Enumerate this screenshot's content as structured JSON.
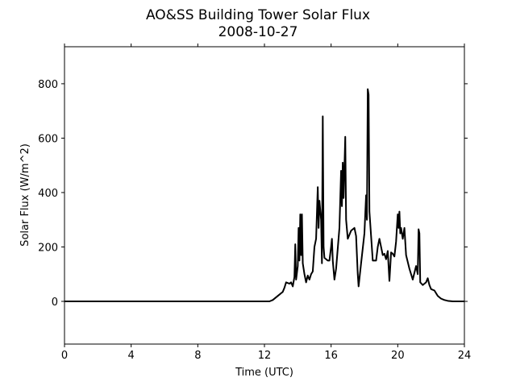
{
  "chart_data": {
    "type": "line",
    "title": "AO&SS Building Tower Solar Flux",
    "subtitle": "2008-10-27",
    "xlabel": "Time (UTC)",
    "ylabel": "Solar Flux (W/m^2)",
    "xlim": [
      0,
      24
    ],
    "xticks": [
      0,
      4,
      8,
      12,
      16,
      20,
      24
    ],
    "ylim": [
      -157,
      936
    ],
    "yticks": [
      0,
      200,
      400,
      600,
      800
    ],
    "grid": false,
    "series": [
      {
        "color": "#000000",
        "x": [
          0,
          12,
          12.3,
          12.5,
          12.7,
          12.9,
          13.0,
          13.1,
          13.2,
          13.3,
          13.5,
          13.6,
          13.7,
          13.8,
          13.85,
          13.9,
          14.0,
          14.05,
          14.1,
          14.15,
          14.2,
          14.25,
          14.3,
          14.4,
          14.5,
          14.6,
          14.7,
          14.8,
          14.9,
          15.0,
          15.1,
          15.2,
          15.25,
          15.3,
          15.4,
          15.45,
          15.5,
          15.55,
          15.6,
          15.8,
          15.9,
          16.0,
          16.05,
          16.1,
          16.2,
          16.3,
          16.5,
          16.6,
          16.65,
          16.7,
          16.75,
          16.85,
          16.9,
          17.0,
          17.2,
          17.4,
          17.5,
          17.6,
          17.65,
          17.8,
          18.0,
          18.1,
          18.15,
          18.2,
          18.25,
          18.3,
          18.4,
          18.5,
          18.7,
          18.8,
          18.9,
          19.0,
          19.1,
          19.2,
          19.3,
          19.4,
          19.5,
          19.6,
          19.7,
          19.8,
          19.9,
          20.0,
          20.05,
          20.1,
          20.15,
          20.2,
          20.3,
          20.4,
          20.5,
          20.7,
          20.9,
          21.1,
          21.2,
          21.25,
          21.3,
          21.35,
          21.5,
          21.7,
          21.8,
          21.9,
          22.0,
          22.2,
          22.4,
          22.6,
          22.8,
          23.0,
          23.3,
          24
        ],
        "values": [
          0,
          0,
          0,
          5,
          15,
          25,
          30,
          35,
          50,
          70,
          65,
          70,
          55,
          90,
          210,
          80,
          130,
          270,
          150,
          320,
          170,
          320,
          140,
          100,
          70,
          95,
          80,
          100,
          110,
          200,
          230,
          420,
          270,
          370,
          300,
          140,
          680,
          200,
          160,
          150,
          150,
          200,
          230,
          150,
          80,
          120,
          270,
          480,
          350,
          510,
          380,
          605,
          300,
          230,
          260,
          270,
          240,
          100,
          55,
          140,
          250,
          390,
          300,
          780,
          760,
          330,
          240,
          150,
          150,
          200,
          230,
          200,
          170,
          175,
          155,
          185,
          75,
          180,
          175,
          165,
          220,
          320,
          270,
          330,
          250,
          270,
          230,
          270,
          170,
          120,
          80,
          130,
          100,
          265,
          250,
          70,
          60,
          70,
          85,
          60,
          45,
          40,
          20,
          10,
          5,
          2,
          0,
          0
        ]
      }
    ]
  }
}
